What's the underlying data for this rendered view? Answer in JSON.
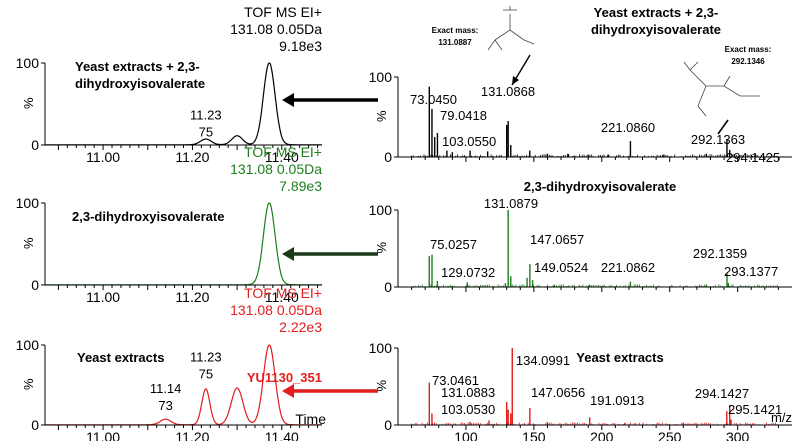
{
  "colors": {
    "black": "#000000",
    "green": "#1c7f1c",
    "red": "#e31c1c",
    "arrow_black": "#000000",
    "arrow_green": "#1a3a1a",
    "arrow_red": "#e31c1c"
  },
  "chart_data": [
    {
      "type": "line",
      "panel": "chromatogram-top",
      "color": "black",
      "title": "Yeast extracts + 2,3-dihydroxyisovalerate",
      "header": [
        "TOF MS EI+",
        "131.08 0.05Da",
        "9.18e3"
      ],
      "ylabel": "%",
      "ylim": [
        0,
        100
      ],
      "y_ticks": [
        "0",
        "100"
      ],
      "xlim": [
        10.87,
        11.49
      ],
      "x_ticks": [
        "11.00",
        "11.20",
        "11.40"
      ],
      "peaks": [
        {
          "x": 11.23,
          "height": 7,
          "width": 0.012
        },
        {
          "x": 11.3,
          "height": 11,
          "width": 0.012
        },
        {
          "x": 11.372,
          "height": 100,
          "width": 0.013
        }
      ],
      "annotations": [
        {
          "x": 11.23,
          "lines": [
            "11.23",
            "75"
          ]
        }
      ]
    },
    {
      "type": "line",
      "panel": "chromatogram-middle",
      "color": "green",
      "title": "2,3-dihydroxyisovalerate",
      "header": [
        "TOF MS EI+",
        "131.08 0.05Da",
        "7.89e3"
      ],
      "ylabel": "%",
      "ylim": [
        0,
        100
      ],
      "y_ticks": [
        "0",
        "100"
      ],
      "xlim": [
        10.87,
        11.49
      ],
      "x_ticks": [
        "11.00",
        "11.20",
        "11.40"
      ],
      "peaks": [
        {
          "x": 11.372,
          "height": 100,
          "width": 0.013
        }
      ],
      "annotations": []
    },
    {
      "type": "line",
      "panel": "chromatogram-bottom",
      "color": "red",
      "title": "Yeast extracts",
      "header": [
        "TOF MS EI+",
        "131.08 0.05Da",
        "2.22e3"
      ],
      "sample_id": "YU1130_351",
      "ylabel": "%",
      "xlabel": "Time",
      "ylim": [
        0,
        100
      ],
      "y_ticks": [
        "0",
        "100"
      ],
      "xlim": [
        10.87,
        11.49
      ],
      "x_ticks": [
        "11.00",
        "11.20",
        "11.40"
      ],
      "peaks": [
        {
          "x": 11.14,
          "height": 7,
          "width": 0.012
        },
        {
          "x": 11.23,
          "height": 45,
          "width": 0.009
        },
        {
          "x": 11.3,
          "height": 46,
          "width": 0.013
        },
        {
          "x": 11.372,
          "height": 100,
          "width": 0.013
        }
      ],
      "annotations": [
        {
          "x": 11.23,
          "lines": [
            "11.23",
            "75"
          ]
        },
        {
          "x": 11.14,
          "lines": [
            "11.14",
            "73"
          ]
        }
      ]
    },
    {
      "type": "bar",
      "panel": "spectrum-top",
      "color": "black",
      "title": "Yeast extracts + 2,3-dihydroxyisovalerate",
      "ylabel": "%",
      "ylim": [
        0,
        100
      ],
      "y_ticks": [
        "0",
        "100"
      ],
      "xlim": [
        50,
        340
      ],
      "peaks": [
        {
          "mz": 73.045,
          "value": 88,
          "label": "73.0450"
        },
        {
          "mz": 75.0,
          "value": 60
        },
        {
          "mz": 77.0,
          "value": 25
        },
        {
          "mz": 79.0418,
          "value": 30,
          "label": "79.0418"
        },
        {
          "mz": 86.0,
          "value": 8
        },
        {
          "mz": 90.0,
          "value": 6
        },
        {
          "mz": 103.055,
          "value": 8,
          "label": "103.0550"
        },
        {
          "mz": 116.0,
          "value": 7
        },
        {
          "mz": 130.0,
          "value": 40
        },
        {
          "mz": 131.0868,
          "value": 45,
          "label": "131.0868"
        },
        {
          "mz": 133.0,
          "value": 15
        },
        {
          "mz": 147.0,
          "value": 8
        },
        {
          "mz": 160.0,
          "value": 4
        },
        {
          "mz": 175.0,
          "value": 4
        },
        {
          "mz": 190.0,
          "value": 3
        },
        {
          "mz": 205.0,
          "value": 3
        },
        {
          "mz": 221.086,
          "value": 20,
          "label": "221.0860"
        },
        {
          "mz": 245.0,
          "value": 3
        },
        {
          "mz": 277.0,
          "value": 4
        },
        {
          "mz": 292.1363,
          "value": 22,
          "label": "292.1363"
        },
        {
          "mz": 294.1425,
          "value": 9,
          "label": "294.1425"
        },
        {
          "mz": 310.0,
          "value": 3
        }
      ],
      "structures": [
        {
          "caption": [
            "Exact mass:",
            "131.0887"
          ]
        },
        {
          "caption": [
            "Exact mass:",
            "292.1346"
          ]
        }
      ]
    },
    {
      "type": "bar",
      "panel": "spectrum-middle",
      "color": "green",
      "title": "2,3-dihydroxyisovalerate",
      "ylabel": "%",
      "ylim": [
        0,
        100
      ],
      "y_ticks": [
        "0",
        "100"
      ],
      "xlim": [
        50,
        340
      ],
      "peaks": [
        {
          "mz": 73.0,
          "value": 40
        },
        {
          "mz": 75.0257,
          "value": 42,
          "label": "75.0257"
        },
        {
          "mz": 79.0,
          "value": 8
        },
        {
          "mz": 101.0,
          "value": 6
        },
        {
          "mz": 129.0732,
          "value": 5,
          "label": "129.0732"
        },
        {
          "mz": 131.0879,
          "value": 100,
          "label": "131.0879"
        },
        {
          "mz": 133.0,
          "value": 14
        },
        {
          "mz": 145.0,
          "value": 12
        },
        {
          "mz": 147.0657,
          "value": 30,
          "label": "147.0657"
        },
        {
          "mz": 149.0524,
          "value": 9,
          "label": "149.0524"
        },
        {
          "mz": 165.0,
          "value": 3
        },
        {
          "mz": 191.0,
          "value": 3
        },
        {
          "mz": 221.0862,
          "value": 7,
          "label": "221.0862"
        },
        {
          "mz": 277.0,
          "value": 3
        },
        {
          "mz": 292.1359,
          "value": 18,
          "label": "292.1359"
        },
        {
          "mz": 293.1377,
          "value": 5,
          "label": "293.1377"
        }
      ]
    },
    {
      "type": "bar",
      "panel": "spectrum-bottom",
      "color": "red",
      "title": "Yeast extracts",
      "ylabel": "%",
      "xlabel": "m/z",
      "ylim": [
        0,
        100
      ],
      "y_ticks": [
        "0",
        "100"
      ],
      "xlim": [
        50,
        340
      ],
      "x_ticks": [
        "100",
        "150",
        "200",
        "250",
        "300"
      ],
      "peaks": [
        {
          "mz": 73.0461,
          "value": 55,
          "label": "73.0461"
        },
        {
          "mz": 75.0,
          "value": 15
        },
        {
          "mz": 103.053,
          "value": 4,
          "label": "103.0530"
        },
        {
          "mz": 117.0,
          "value": 6
        },
        {
          "mz": 130.0,
          "value": 30
        },
        {
          "mz": 131.0883,
          "value": 20,
          "label": "131.0883"
        },
        {
          "mz": 133.0,
          "value": 15
        },
        {
          "mz": 134.0991,
          "value": 100,
          "label": "134.0991"
        },
        {
          "mz": 147.0656,
          "value": 22,
          "label": "147.0656"
        },
        {
          "mz": 160.0,
          "value": 4
        },
        {
          "mz": 191.0913,
          "value": 10,
          "label": "191.0913"
        },
        {
          "mz": 217.0,
          "value": 3
        },
        {
          "mz": 260.0,
          "value": 3
        },
        {
          "mz": 292.0,
          "value": 18
        },
        {
          "mz": 294.1427,
          "value": 26,
          "label": "294.1427"
        },
        {
          "mz": 295.1421,
          "value": 7,
          "label": "295.1421"
        }
      ]
    }
  ]
}
